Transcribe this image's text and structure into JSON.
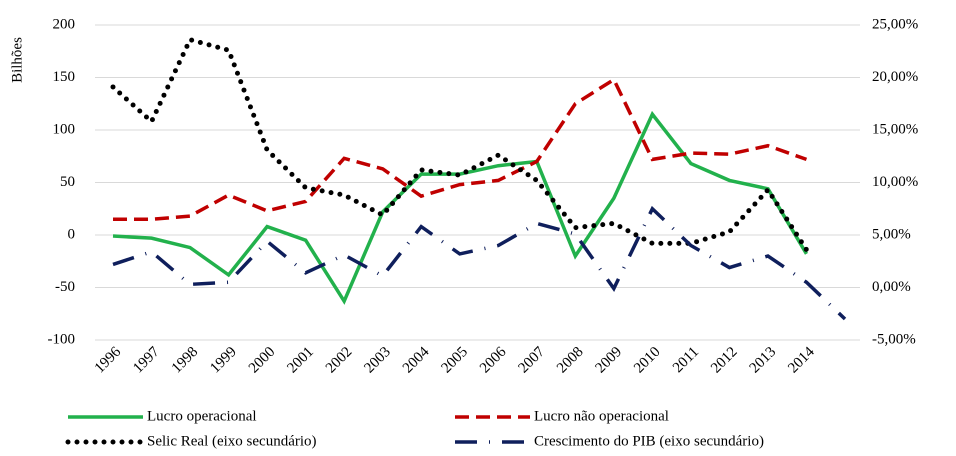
{
  "chart_data": {
    "type": "line",
    "y_label": "Bilhões",
    "categories": [
      "1996",
      "1997",
      "1998",
      "1999",
      "2000",
      "2001",
      "2002",
      "2003",
      "2004",
      "2005",
      "2006",
      "2007",
      "2008",
      "2009",
      "2010",
      "2011",
      "2012",
      "2013",
      "2014",
      null
    ],
    "ylim": [
      -100,
      200
    ],
    "yticks": [
      -100,
      -50,
      0,
      50,
      100,
      150,
      200
    ],
    "y2lim": [
      -5,
      25
    ],
    "y2ticks": [
      {
        "value": -5,
        "label": "-5,00%"
      },
      {
        "value": 0,
        "label": "0,00%"
      },
      {
        "value": 5,
        "label": "5,00%"
      },
      {
        "value": 10,
        "label": "10,00%"
      },
      {
        "value": 15,
        "label": "15,00%"
      },
      {
        "value": 20,
        "label": "20,00%"
      },
      {
        "value": 25,
        "label": "25,00%"
      }
    ],
    "series": [
      {
        "name": "Lucro operacional",
        "color": "#22b14c",
        "dash": "solid",
        "values": [
          -1,
          -3,
          -12,
          -38,
          8,
          -5,
          -63,
          22,
          58,
          58,
          66,
          70,
          -20,
          35,
          115,
          68,
          52,
          44,
          -18,
          null
        ]
      },
      {
        "name": "Lucro não operacional",
        "color": "#c00000",
        "dash": "dashed",
        "values": [
          15,
          15,
          18,
          38,
          23,
          32,
          73,
          63,
          37,
          48,
          52,
          70,
          125,
          148,
          72,
          78,
          77,
          85,
          72,
          null
        ]
      },
      {
        "name": "Selic Real (eixo secundário)",
        "color": "#000000",
        "dash": "dotted",
        "axis": "y2",
        "values": [
          19.1,
          15.8,
          23.6,
          22.6,
          13.1,
          9.5,
          8.8,
          6.9,
          11.2,
          10.7,
          12.6,
          10.2,
          5.7,
          6.1,
          4.2,
          4.2,
          5.3,
          9.3,
          3.6,
          null
        ]
      },
      {
        "name": "Crescimento do PIB (eixo secundário)",
        "color": "#0f1f5c",
        "dash": "dashdot",
        "axis": "y2",
        "values": [
          2.2,
          3.4,
          0.3,
          0.5,
          4.4,
          1.4,
          3.1,
          1.1,
          5.8,
          3.2,
          4.0,
          6.1,
          5.1,
          -0.1,
          7.5,
          4.0,
          1.9,
          3.0,
          0.5,
          -3
        ]
      }
    ]
  }
}
